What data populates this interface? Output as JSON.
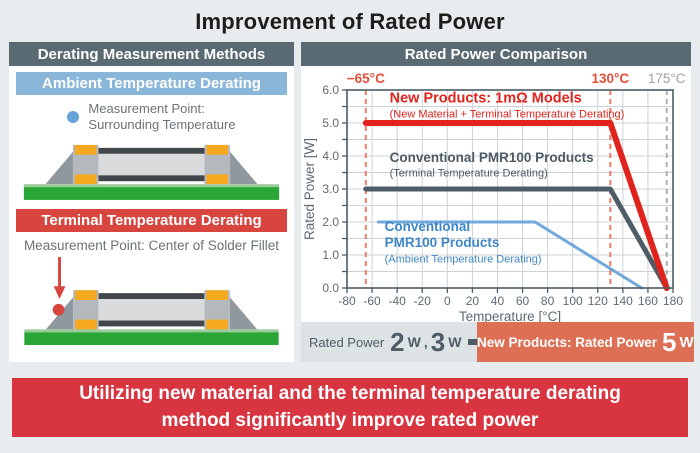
{
  "title": "Improvement of Rated Power",
  "left_panel": {
    "header": "Derating Measurement Methods",
    "ambient": {
      "header": "Ambient Temperature Derating",
      "measurement_line1": "Measurement Point:",
      "measurement_line2": "Surrounding Temperature"
    },
    "terminal": {
      "header": "Terminal Temperature Derating",
      "measurement_label": "Measurement Point: Center of Solder Fillet"
    }
  },
  "right_panel": {
    "header": "Rated Power Comparison",
    "summary": {
      "old_label": "Rated Power",
      "old_value1_num": "2",
      "old_value1_unit": "W",
      "separator": ",",
      "old_value2_num": "3",
      "old_value2_unit": "W",
      "new_label": "New Products: Rated Power",
      "new_value_num": "5",
      "new_value_unit": "W"
    }
  },
  "banner": {
    "line1": "Utilizing new material and the terminal temperature derating",
    "line2": "method significantly improve rated power"
  },
  "colors": {
    "page_bg": "#e8ecef",
    "panel_header_bg": "#5a6a73",
    "ambient_header_bg": "#8ab6d9",
    "terminal_header_bg": "#d8453e",
    "banner_bg": "#d93540",
    "new_power_box_bg": "#dc6f54",
    "board_green": "#2aa637",
    "solder_gray": "#8f989e",
    "pad_orange": "#f6a81e"
  },
  "chart_data": {
    "type": "line",
    "title": "Rated Power Comparison",
    "xlabel": "Temperature [°C]",
    "ylabel": "Rated Power [W]",
    "xlim": [
      -80,
      180
    ],
    "ylim": [
      0,
      6
    ],
    "x_grid_step": 20,
    "y_grid_step": 0.5,
    "grid": true,
    "legend_position": "inline-annotations",
    "x_ticks": [
      [
        -80,
        "-80"
      ],
      [
        -60,
        "-60"
      ],
      [
        -40,
        "-40"
      ],
      [
        -20,
        "-20"
      ],
      [
        0,
        "0"
      ],
      [
        20,
        "20"
      ],
      [
        40,
        "40"
      ],
      [
        60,
        "60"
      ],
      [
        80,
        "80"
      ],
      [
        100,
        "100"
      ],
      [
        120,
        "120"
      ],
      [
        140,
        "140"
      ],
      [
        160,
        "160"
      ],
      [
        180,
        "180"
      ]
    ],
    "y_ticks": [
      [
        0,
        "0.0"
      ],
      [
        1,
        "1.0"
      ],
      [
        2,
        "2.0"
      ],
      [
        3,
        "3.0"
      ],
      [
        4,
        "4.0"
      ],
      [
        5,
        "5.0"
      ],
      [
        6,
        "6.0"
      ]
    ],
    "series": [
      {
        "name": "Conventional PMR100 Products (Ambient Temperature Derating)",
        "color": "#72a9db",
        "width": 3,
        "points": [
          [
            -55,
            2
          ],
          [
            70,
            2
          ],
          [
            155,
            0
          ]
        ]
      },
      {
        "name": "Conventional PMR100 Products (Terminal Temperature Derating)",
        "color": "#4d5c66",
        "width": 5,
        "points": [
          [
            -65,
            3
          ],
          [
            130,
            3
          ],
          [
            175,
            0
          ]
        ]
      },
      {
        "name": "New Products: 1mΩ Models (New Material + Terminal Temperature Derating)",
        "color": "#e0231d",
        "width": 6,
        "points": [
          [
            -65,
            5
          ],
          [
            130,
            5
          ],
          [
            175,
            0
          ]
        ]
      }
    ],
    "ref_lines": [
      {
        "x": -65,
        "label": "−65°C",
        "line_color": "#ee7a64",
        "label_color": "#e2503c",
        "bold": true
      },
      {
        "x": 130,
        "label": "130°C",
        "line_color": "#ee7a64",
        "label_color": "#e2503c",
        "bold": true
      },
      {
        "x": 175,
        "label": "175°C",
        "line_color": "#a9b0b5",
        "label_color": "#9aa2a8",
        "bold": false
      }
    ],
    "annotations": [
      {
        "x": -46,
        "y": 5.62,
        "text": "New Products: 1mΩ Models",
        "color": "#e0231d",
        "size": 14.5,
        "bold": true
      },
      {
        "x": -46,
        "y": 5.17,
        "text": "(New Material + Terminal Temperature Derating)",
        "color": "#e0231d",
        "size": 11,
        "bold": false
      },
      {
        "x": -46,
        "y": 3.82,
        "text": "Conventional PMR100 Products",
        "color": "#4d5c66",
        "size": 13.5,
        "bold": true
      },
      {
        "x": -46,
        "y": 3.38,
        "text": "(Terminal Temperature Derating)",
        "color": "#4d5c66",
        "size": 11,
        "bold": false
      },
      {
        "x": -50,
        "y": 1.72,
        "text": "Conventional",
        "color": "#3f86c9",
        "size": 13.5,
        "bold": true
      },
      {
        "x": -50,
        "y": 1.25,
        "text": "PMR100 Products",
        "color": "#3f86c9",
        "size": 13.5,
        "bold": true
      },
      {
        "x": -50,
        "y": 0.78,
        "text": "(Ambient Temperature Derating)",
        "color": "#3f86c9",
        "size": 11,
        "bold": false
      }
    ],
    "style": {
      "grid": "#cdd2d6",
      "axis": "#4d5c66",
      "tick_label": "#5f6b73",
      "axis_label": "#5f6b73"
    }
  }
}
